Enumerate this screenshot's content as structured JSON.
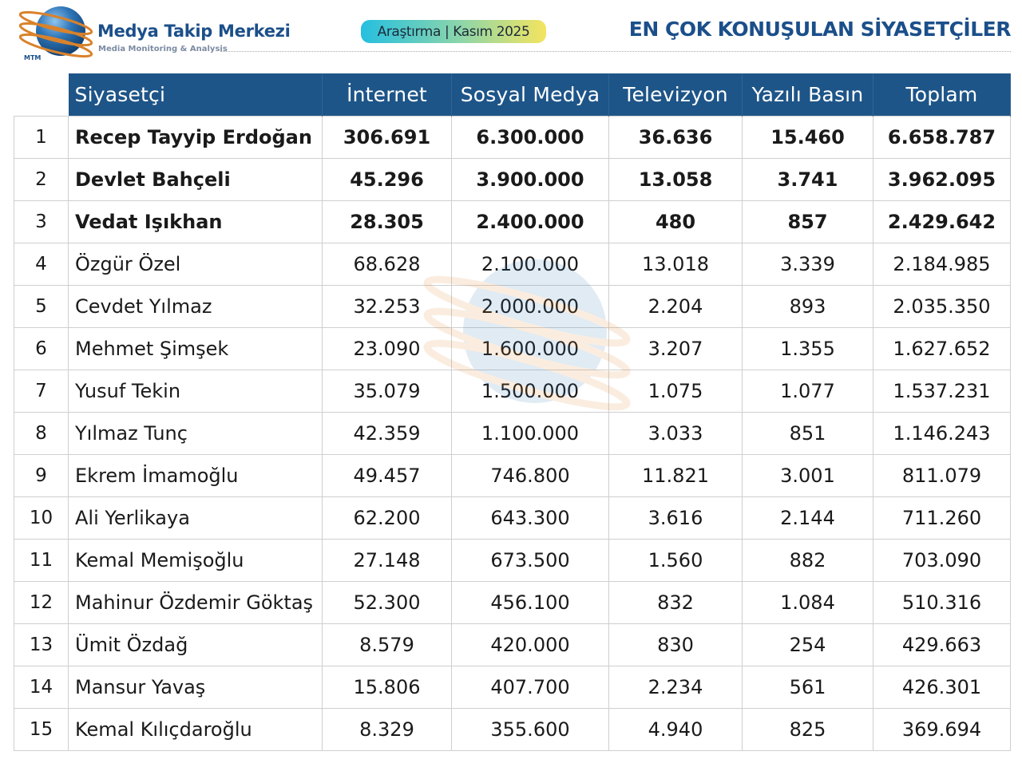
{
  "header": {
    "brand_name": "Medya Takip Merkezi",
    "brand_subtitle": "Media Monitoring & Analysis",
    "logo_text": "MTM",
    "badge": "Araştırma | Kasım 2025",
    "title": "EN ÇOK KONUŞULAN SİYASETÇİLER"
  },
  "colors": {
    "brand_blue": "#1b4f8a",
    "header_row_bg": "#1e5588",
    "badge_gradient_start": "#25bfe0",
    "badge_gradient_end": "#f4e45f",
    "logo_ring": "#d9822b"
  },
  "table": {
    "columns": [
      "",
      "Siyasetçi",
      "İnternet",
      "Sosyal Medya",
      "Televizyon",
      "Yazılı Basın",
      "Toplam"
    ],
    "rows": [
      {
        "rank": "1",
        "name": "Recep Tayyip Erdoğan",
        "internet": "306.691",
        "social": "6.300.000",
        "tv": "36.636",
        "print": "15.460",
        "total": "6.658.787"
      },
      {
        "rank": "2",
        "name": "Devlet Bahçeli",
        "internet": "45.296",
        "social": "3.900.000",
        "tv": "13.058",
        "print": "3.741",
        "total": "3.962.095"
      },
      {
        "rank": "3",
        "name": "Vedat Işıkhan",
        "internet": "28.305",
        "social": "2.400.000",
        "tv": "480",
        "print": "857",
        "total": "2.429.642"
      },
      {
        "rank": "4",
        "name": "Özgür Özel",
        "internet": "68.628",
        "social": "2.100.000",
        "tv": "13.018",
        "print": "3.339",
        "total": "2.184.985"
      },
      {
        "rank": "5",
        "name": "Cevdet Yılmaz",
        "internet": "32.253",
        "social": "2.000.000",
        "tv": "2.204",
        "print": "893",
        "total": "2.035.350"
      },
      {
        "rank": "6",
        "name": "Mehmet Şimşek",
        "internet": "23.090",
        "social": "1.600.000",
        "tv": "3.207",
        "print": "1.355",
        "total": "1.627.652"
      },
      {
        "rank": "7",
        "name": "Yusuf Tekin",
        "internet": "35.079",
        "social": "1.500.000",
        "tv": "1.075",
        "print": "1.077",
        "total": "1.537.231"
      },
      {
        "rank": "8",
        "name": "Yılmaz Tunç",
        "internet": "42.359",
        "social": "1.100.000",
        "tv": "3.033",
        "print": "851",
        "total": "1.146.243"
      },
      {
        "rank": "9",
        "name": "Ekrem İmamoğlu",
        "internet": "49.457",
        "social": "746.800",
        "tv": "11.821",
        "print": "3.001",
        "total": "811.079"
      },
      {
        "rank": "10",
        "name": "Ali Yerlikaya",
        "internet": "62.200",
        "social": "643.300",
        "tv": "3.616",
        "print": "2.144",
        "total": "711.260"
      },
      {
        "rank": "11",
        "name": "Kemal Memişoğlu",
        "internet": "27.148",
        "social": "673.500",
        "tv": "1.560",
        "print": "882",
        "total": "703.090"
      },
      {
        "rank": "12",
        "name": "Mahinur Özdemir Göktaş",
        "internet": "52.300",
        "social": "456.100",
        "tv": "832",
        "print": "1.084",
        "total": "510.316"
      },
      {
        "rank": "13",
        "name": "Ümit Özdağ",
        "internet": "8.579",
        "social": "420.000",
        "tv": "830",
        "print": "254",
        "total": "429.663"
      },
      {
        "rank": "14",
        "name": "Mansur Yavaş",
        "internet": "15.806",
        "social": "407.700",
        "tv": "2.234",
        "print": "561",
        "total": "426.301"
      },
      {
        "rank": "15",
        "name": "Kemal Kılıçdaroğlu",
        "internet": "8.329",
        "social": "355.600",
        "tv": "4.940",
        "print": "825",
        "total": "369.694"
      }
    ]
  }
}
